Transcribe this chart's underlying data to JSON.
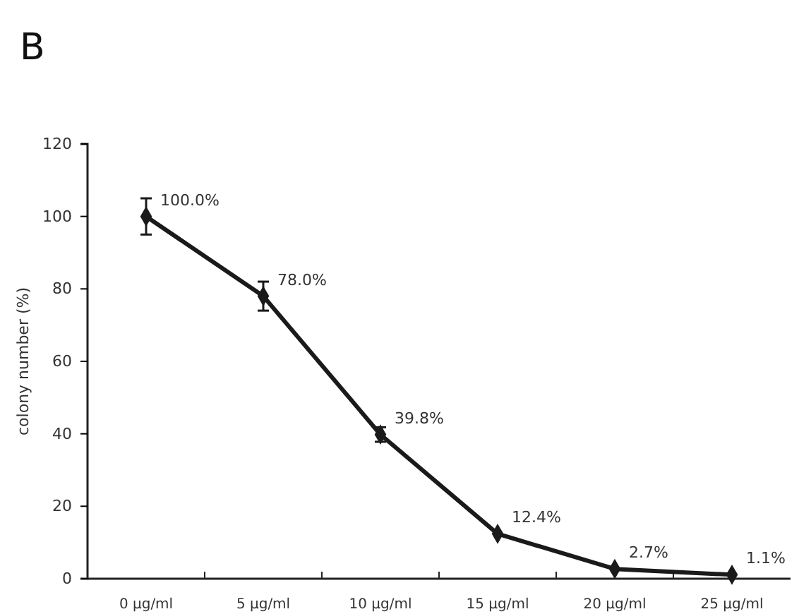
{
  "chart_data": {
    "type": "line",
    "title": "B",
    "ylabel": "colony number (%)",
    "categories": [
      "0 μg/ml",
      "5 μg/ml",
      "10 μg/ml",
      "15 μg/ml",
      "20 μg/ml",
      "25 μg/ml"
    ],
    "series": [
      {
        "color": "#1a1a1a",
        "values": [
          100,
          78,
          39.8,
          12.4,
          2.7,
          1.1
        ],
        "errors": [
          5,
          4,
          2,
          null,
          null,
          null
        ],
        "value_labels": [
          "100.0%",
          "78.0%",
          "39.8%",
          "12.4%",
          "2.7%",
          "1.1%"
        ]
      }
    ],
    "ylim": [
      0,
      120
    ],
    "yticks": [
      0,
      20,
      40,
      60,
      80,
      100,
      120
    ],
    "grid": false,
    "marker": "diamond",
    "line_style": "solid"
  }
}
